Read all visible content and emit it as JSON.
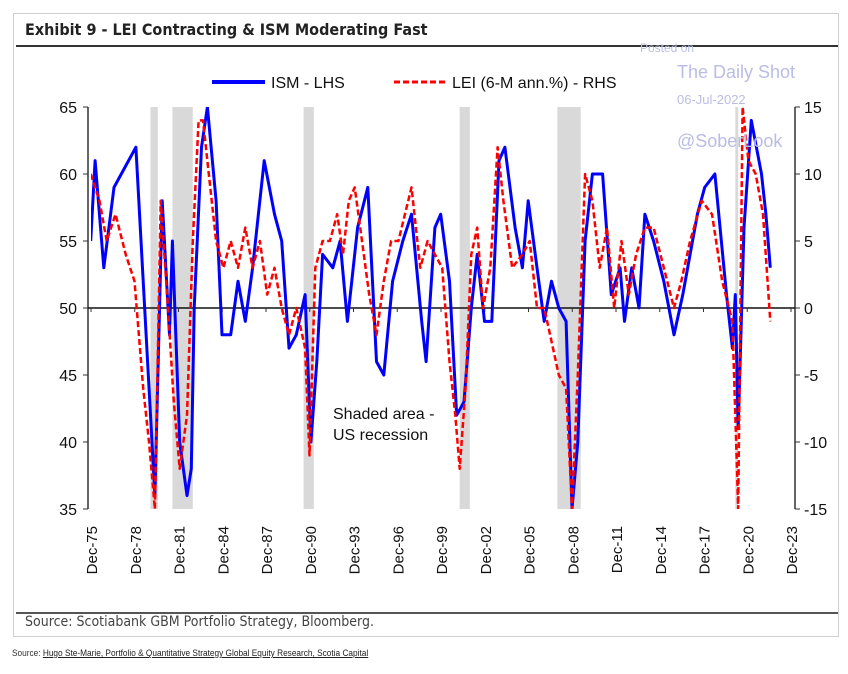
{
  "header": {
    "title": "Exhibit 9 - LEI Contracting & ISM Moderating Fast"
  },
  "watermark": {
    "line1": "Posted on",
    "line2": "The Daily Shot",
    "line3": "06-Jul-2022",
    "line4": "@SoberLook"
  },
  "footer": {
    "chart_source": "Source: Scotiabank GBM Portfolio Strategy, Bloomberg.",
    "page_source_prefix": "Source: ",
    "page_source_link": "Hugo Ste-Marie, Portfolio & Quantitative Strategy Global Equity Research, Scotia Capital"
  },
  "chart_data": {
    "type": "line",
    "title": "Exhibit 9 - LEI Contracting & ISM Moderating Fast",
    "annotation": [
      "Shaded area -",
      "US recession"
    ],
    "legend_placement": "top-center",
    "x_tick_labels": [
      "Dec-75",
      "Dec-78",
      "Dec-81",
      "Dec-84",
      "Dec-87",
      "Dec-90",
      "Dec-93",
      "Dec-96",
      "Dec-99",
      "Dec-02",
      "Dec-05",
      "Dec-08",
      "Dec-11",
      "Dec-14",
      "Dec-17",
      "Dec-20",
      "Dec-23"
    ],
    "x_tick_years": [
      1975.92,
      1978.92,
      1981.92,
      1984.92,
      1987.92,
      1990.92,
      1993.92,
      1996.92,
      1999.92,
      2002.92,
      2005.92,
      2008.92,
      2011.92,
      2014.92,
      2017.92,
      2020.92,
      2023.92
    ],
    "xlim": [
      1975.92,
      2023.92
    ],
    "y_left": {
      "ylim": [
        35,
        65
      ],
      "ticks": [
        "35",
        "40",
        "45",
        "50",
        "55",
        "60",
        "65"
      ]
    },
    "y_right": {
      "ylim": [
        -15,
        15
      ],
      "ticks": [
        "-15",
        "-10",
        "-5",
        "0",
        "5",
        "10",
        "15"
      ]
    },
    "recessions": [
      [
        1980.0,
        1980.5
      ],
      [
        1981.5,
        1982.9
      ],
      [
        1990.5,
        1991.2
      ],
      [
        2001.2,
        2001.9
      ],
      [
        2007.9,
        2009.5
      ],
      [
        2020.1,
        2020.3
      ]
    ],
    "colors": {
      "ism": "#0000ff",
      "lei": "#ff0000",
      "recession": "#d9d9d9"
    },
    "series": [
      {
        "name": "ISM - LHS",
        "axis": "left",
        "style": "solid",
        "x": [
          1975.9,
          1976.2,
          1976.8,
          1977.5,
          1978.5,
          1979.0,
          1979.5,
          1980.3,
          1980.8,
          1981.3,
          1981.5,
          1982.0,
          1982.5,
          1982.8,
          1983.0,
          1983.5,
          1983.9,
          1984.5,
          1984.9,
          1985.5,
          1986.0,
          1986.5,
          1987.0,
          1987.8,
          1988.5,
          1989.0,
          1989.5,
          1990.0,
          1990.6,
          1991.0,
          1991.4,
          1991.8,
          1992.5,
          1993.0,
          1993.5,
          1994.2,
          1994.9,
          1995.5,
          1996.0,
          1996.6,
          1997.3,
          1997.9,
          1998.6,
          1998.9,
          1999.5,
          1999.9,
          2000.5,
          2001.0,
          2001.5,
          2002.0,
          2002.4,
          2002.9,
          2003.4,
          2003.9,
          2004.3,
          2005.0,
          2005.5,
          2005.9,
          2006.5,
          2007.0,
          2007.5,
          2008.0,
          2008.5,
          2008.9,
          2009.3,
          2009.8,
          2010.3,
          2011.0,
          2011.6,
          2012.2,
          2012.5,
          2013.0,
          2013.5,
          2013.9,
          2014.5,
          2015.2,
          2015.9,
          2016.5,
          2017.5,
          2018.0,
          2018.7,
          2019.5,
          2019.9,
          2020.1,
          2020.3,
          2020.7,
          2021.2,
          2021.9,
          2022.2,
          2022.5
        ],
        "values": [
          55,
          61,
          53,
          59,
          61,
          62,
          52,
          36,
          58,
          48,
          55,
          40,
          36,
          38,
          50,
          62,
          65,
          58,
          48,
          48,
          52,
          49,
          53,
          61,
          57,
          55,
          47,
          48,
          51,
          40,
          46,
          54,
          53,
          55,
          49,
          56,
          59,
          46,
          45,
          52,
          55,
          57,
          49,
          46,
          56,
          57,
          52,
          42,
          43,
          50,
          54,
          49,
          49,
          61,
          62,
          56,
          53,
          58,
          53,
          49,
          52,
          50,
          49,
          35,
          40,
          55,
          60,
          60,
          51,
          53,
          49,
          53,
          50,
          57,
          55,
          52,
          48,
          51,
          57,
          59,
          60,
          51,
          47,
          51,
          41,
          56,
          64,
          60,
          57,
          53
        ]
      },
      {
        "name": "LEI (6-M ann.%) - RHS",
        "axis": "right",
        "style": "dashed",
        "x": [
          1975.9,
          1976.5,
          1977.0,
          1977.6,
          1978.3,
          1978.9,
          1979.5,
          1979.9,
          1980.3,
          1980.7,
          1981.2,
          1981.6,
          1982.0,
          1982.5,
          1982.9,
          1983.3,
          1983.6,
          1984.0,
          1984.5,
          1985.0,
          1985.5,
          1986.0,
          1986.5,
          1987.0,
          1987.5,
          1988.0,
          1988.5,
          1989.0,
          1989.5,
          1990.0,
          1990.6,
          1990.9,
          1991.3,
          1991.8,
          1992.3,
          1992.8,
          1993.2,
          1993.6,
          1994.0,
          1994.5,
          1995.0,
          1995.5,
          1996.0,
          1996.5,
          1997.0,
          1997.9,
          1998.5,
          1999.0,
          1999.5,
          2000.0,
          2000.5,
          2000.9,
          2001.2,
          2001.6,
          2002.0,
          2002.4,
          2002.8,
          2003.3,
          2003.8,
          2004.2,
          2004.8,
          2005.5,
          2006.0,
          2006.5,
          2007.0,
          2007.6,
          2008.0,
          2008.5,
          2008.9,
          2009.3,
          2009.8,
          2010.3,
          2010.8,
          2011.3,
          2011.8,
          2012.3,
          2012.8,
          2013.3,
          2013.9,
          2014.5,
          2015.2,
          2015.9,
          2016.4,
          2017.0,
          2017.8,
          2018.5,
          2019.2,
          2019.9,
          2020.3,
          2020.6,
          2021.0,
          2021.5,
          2022.0,
          2022.5
        ],
        "values": [
          10,
          8,
          5,
          7,
          4,
          2,
          -6,
          -10,
          -15,
          8,
          0,
          -7,
          -12,
          -8,
          5,
          14,
          14,
          10,
          5,
          3,
          5,
          3,
          6,
          3,
          5,
          1,
          3,
          0,
          -2,
          0,
          -3,
          -11,
          3,
          5,
          5,
          7,
          4,
          8,
          9,
          5,
          1,
          -2,
          2,
          5,
          5,
          9,
          3,
          5,
          4,
          3,
          -4,
          -8,
          -12,
          -6,
          4,
          6,
          0,
          3,
          12,
          8,
          3,
          4,
          5,
          0,
          0,
          -3,
          -5,
          -6,
          -15,
          -5,
          10,
          8,
          3,
          6,
          0,
          5,
          1,
          4,
          6,
          6,
          3,
          0,
          2,
          5,
          8,
          7,
          2,
          -1,
          -15,
          15,
          11,
          10,
          7,
          -1
        ]
      }
    ]
  }
}
